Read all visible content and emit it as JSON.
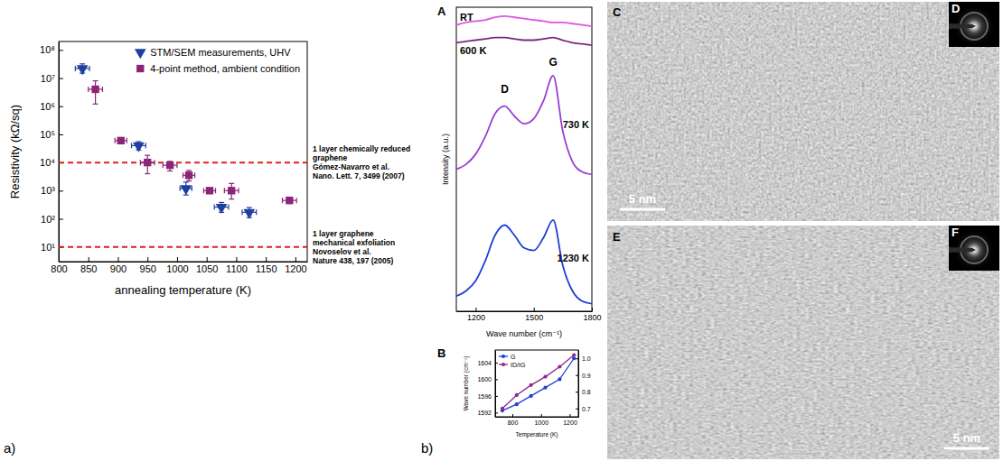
{
  "panel_labels": [
    "a)",
    "b)"
  ],
  "chart_data": [
    {
      "type": "scatter",
      "x_label": "annealing temperature (K)",
      "y_label": "Resistivity (kΩ/sq)",
      "log": "y",
      "xlim": [
        800,
        1220
      ],
      "xticks": [
        800,
        850,
        900,
        950,
        1000,
        1050,
        1100,
        1150,
        1200
      ],
      "ylim": [
        3,
        200000000
      ],
      "yticks": [
        {
          "value": 10,
          "label": "10¹"
        },
        {
          "value": 100,
          "label": "10²"
        },
        {
          "value": 1000,
          "label": "10³"
        },
        {
          "value": 10000,
          "label": "10⁴"
        },
        {
          "value": 100000,
          "label": "10⁵"
        },
        {
          "value": 1000000,
          "label": "10⁶"
        },
        {
          "value": 10000000,
          "label": "10⁷"
        },
        {
          "value": 100000000,
          "label": "10⁸"
        }
      ],
      "legend": "upper right",
      "series": [
        {
          "name": "STM/SEM measurements, UHV",
          "color": "#1f3f9f",
          "marker": "triangle-down",
          "x": [
            840,
            935,
            1015,
            1075,
            1122
          ],
          "values": [
            22000000,
            40000,
            1200,
            260,
            170
          ],
          "x_err": [
            12,
            12,
            10,
            12,
            12
          ],
          "y_lower": [
            15000000,
            28000,
            700,
            170,
            110
          ],
          "y_upper": [
            32000000,
            55000,
            2000,
            380,
            250
          ]
        },
        {
          "name": "4-point method, ambient condition",
          "color": "#8b2578",
          "marker": "square",
          "x": [
            862,
            905,
            950,
            988,
            1020,
            1055,
            1092,
            1190
          ],
          "values": [
            4000000,
            60000,
            10000,
            8000,
            3500,
            1000,
            1000,
            450
          ],
          "x_err": [
            12,
            10,
            12,
            12,
            10,
            10,
            12,
            12
          ],
          "y_lower": [
            1200000,
            48000,
            4000,
            5000,
            2200,
            800,
            500,
            350
          ],
          "y_upper": [
            8000000,
            70000,
            18000,
            11000,
            5200,
            1200,
            1800,
            550
          ]
        }
      ],
      "reference_lines": [
        {
          "value": 10000,
          "color": "#e02020",
          "line_style": "dashed",
          "label": [
            "1 layer chemically reduced",
            "graphene",
            "Gómez-Navarro et al.",
            "Nano. Lett. 7, 3499 (2007)"
          ]
        },
        {
          "value": 10,
          "color": "#e02020",
          "line_style": "dashed",
          "label": [
            "1 layer graphene",
            "mechanical exfoliation",
            "Novoselov et al.",
            "Nature 438, 197 (2005)"
          ]
        }
      ]
    },
    {
      "type": "line",
      "panel": "A",
      "x_label": "Wave number (cm⁻¹)",
      "y_label": "Intensity (a.u.)",
      "tick_labels": "x",
      "xlim": [
        1100,
        1800
      ],
      "xticks": [
        1200,
        1500,
        1800
      ],
      "ylim": [
        0,
        12
      ],
      "x": [
        1100,
        1150,
        1200,
        1250,
        1300,
        1350,
        1400,
        1450,
        1500,
        1550,
        1600,
        1650,
        1700,
        1750,
        1800
      ],
      "series": [
        {
          "name": "RT",
          "color": "#e055e0",
          "values": [
            11.3,
            11.4,
            11.45,
            11.5,
            11.6,
            11.65,
            11.6,
            11.55,
            11.5,
            11.45,
            11.4,
            11.4,
            11.35,
            11.3,
            11.25
          ]
        },
        {
          "name": "600 K",
          "color": "#7a2a7a",
          "values": [
            10.6,
            10.65,
            10.7,
            10.75,
            10.8,
            10.8,
            10.75,
            10.7,
            10.7,
            10.75,
            10.8,
            10.7,
            10.6,
            10.55,
            10.5
          ]
        },
        {
          "name": "730 K",
          "color": "#9a3fd0",
          "values": [
            5.6,
            5.8,
            6.2,
            6.9,
            7.8,
            8.1,
            7.7,
            7.4,
            7.6,
            8.3,
            9.3,
            7.1,
            5.9,
            5.5,
            5.4
          ]
        },
        {
          "name": "1230 K",
          "color": "#1f3fd6",
          "values": [
            0.6,
            0.8,
            1.2,
            2.0,
            3.0,
            3.4,
            3.0,
            2.5,
            2.4,
            2.9,
            3.6,
            1.8,
            0.8,
            0.4,
            0.3
          ]
        }
      ],
      "annotations": [
        {
          "text": "D",
          "x": 1350,
          "y": 8.6
        },
        {
          "text": "G",
          "x": 1600,
          "y": 9.7
        }
      ]
    },
    {
      "type": "line",
      "panel": "B",
      "x_label": "Temperature (K)",
      "y_label": "Wave number (cm⁻¹)",
      "marker": "circle",
      "xlim": [
        680,
        1260
      ],
      "xticks": [
        800,
        1000,
        1200
      ],
      "ylim": [
        1591,
        1607
      ],
      "yticks": [
        1592,
        1596,
        1600,
        1604
      ],
      "y2lim": [
        0.65,
        1.05
      ],
      "y2ticks": [
        0.7,
        0.8,
        0.9,
        {
          "value": 1,
          "label": "1.0"
        }
      ],
      "legend": "upper left",
      "series": [
        {
          "name": "G",
          "color": "#1f3fd6",
          "x": [
            730,
            830,
            930,
            1030,
            1130,
            1230
          ],
          "values": [
            1592.5,
            1594,
            1596,
            1598,
            1600,
            1605
          ]
        },
        {
          "name": "ID/IG",
          "color": "#8a2a8a",
          "axis": "y2",
          "x": [
            730,
            830,
            930,
            1030,
            1130,
            1230
          ],
          "values": [
            0.7,
            0.78,
            0.84,
            0.89,
            0.95,
            1.02
          ]
        }
      ]
    }
  ],
  "images": [
    {
      "panel": "C",
      "scale_bar": "5 nm"
    },
    {
      "panel": "D"
    },
    {
      "panel": "E",
      "scale_bar": "5 nm"
    },
    {
      "panel": "F"
    }
  ]
}
